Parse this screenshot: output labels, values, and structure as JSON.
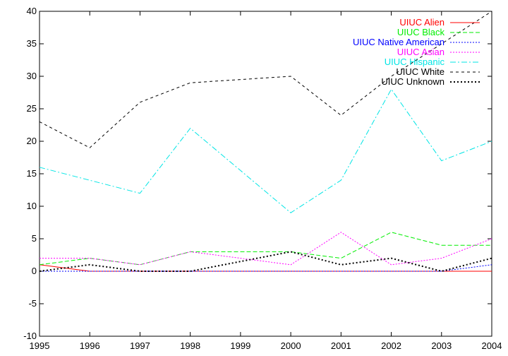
{
  "chart_data": {
    "type": "line",
    "title": "",
    "xlabel": "",
    "ylabel": "",
    "xlim": [
      1995,
      2004
    ],
    "ylim": [
      -10,
      40
    ],
    "x_ticks": [
      1995,
      1996,
      1997,
      1998,
      1999,
      2000,
      2001,
      2002,
      2003,
      2004
    ],
    "y_ticks": [
      -10,
      -5,
      0,
      5,
      10,
      15,
      20,
      25,
      30,
      35,
      40
    ],
    "grid": false,
    "legend_position": "top-right",
    "x": [
      1995,
      1996,
      1997,
      1998,
      1999,
      2000,
      2001,
      2002,
      2003,
      2004
    ],
    "series": [
      {
        "name": "UIUC Alien",
        "color": "#ff0000",
        "dash": "solid",
        "values": [
          1,
          0,
          0,
          0,
          0,
          0,
          0,
          0,
          0,
          0
        ]
      },
      {
        "name": "UIUC Black",
        "color": "#00ee00",
        "dash": "dashed",
        "values": [
          1,
          2,
          1,
          3,
          3,
          3,
          2,
          6,
          4,
          4
        ]
      },
      {
        "name": "UIUC Native American",
        "color": "#0000ff",
        "dash": "dotted",
        "values": [
          0,
          0,
          0,
          0,
          0,
          0,
          0,
          0,
          0,
          1
        ]
      },
      {
        "name": "UIUC Asian",
        "color": "#ff00ff",
        "dash": "dotted",
        "values": [
          2,
          2,
          1,
          3,
          2,
          1,
          6,
          1,
          2,
          5
        ]
      },
      {
        "name": "UIUC Hispanic",
        "color": "#00e5e5",
        "dash": "dash-dot",
        "values": [
          16,
          14,
          12,
          22,
          15.5,
          9,
          14,
          28,
          17,
          20
        ]
      },
      {
        "name": "UIUC White",
        "color": "#000000",
        "dash": "fine-dashed",
        "values": [
          23,
          19,
          26,
          29,
          29.5,
          30,
          24,
          30,
          35,
          40
        ]
      },
      {
        "name": "UIUC Unknown",
        "color": "#000000",
        "dash": "dotted-thick",
        "values": [
          0,
          1,
          0,
          0,
          1.5,
          3,
          1,
          2,
          0,
          2
        ]
      }
    ]
  }
}
